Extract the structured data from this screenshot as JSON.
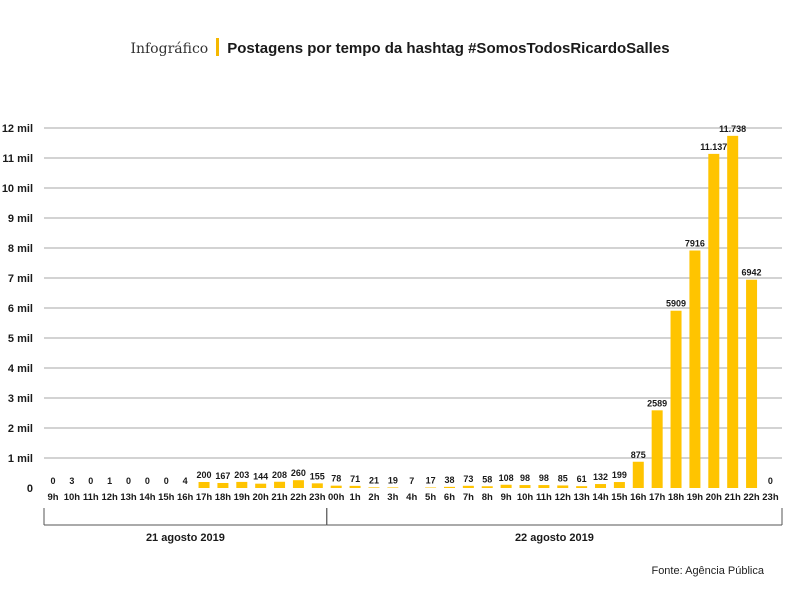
{
  "header": {
    "kicker": "Infográfico",
    "title": "Postagens por tempo da hashtag #SomosTodosRicardoSalles"
  },
  "source": "Fonte: Agência Pública",
  "colors": {
    "bar": "#FFC400",
    "grid": "#8a8a8a",
    "text": "#1a1a1a"
  },
  "chart_data": {
    "type": "bar",
    "title": "Postagens por tempo da hashtag #SomosTodosRicardoSalles",
    "ylim": [
      0,
      12000
    ],
    "grid": true,
    "y_ticks": [
      {
        "value": 0,
        "label": "0"
      },
      {
        "value": 1000,
        "label": "1 mil"
      },
      {
        "value": 2000,
        "label": "2 mil"
      },
      {
        "value": 3000,
        "label": "3 mil"
      },
      {
        "value": 4000,
        "label": "4 mil"
      },
      {
        "value": 5000,
        "label": "5 mil"
      },
      {
        "value": 6000,
        "label": "6 mil"
      },
      {
        "value": 7000,
        "label": "7 mil"
      },
      {
        "value": 8000,
        "label": "8 mil"
      },
      {
        "value": 9000,
        "label": "9 mil"
      },
      {
        "value": 10000,
        "label": "10 mil"
      },
      {
        "value": 11000,
        "label": "11 mil"
      },
      {
        "value": 12000,
        "label": "12 mil"
      }
    ],
    "categories": [
      "9h",
      "10h",
      "11h",
      "12h",
      "13h",
      "14h",
      "15h",
      "16h",
      "17h",
      "18h",
      "19h",
      "20h",
      "21h",
      "22h",
      "23h",
      "00h",
      "1h",
      "2h",
      "3h",
      "4h",
      "5h",
      "6h",
      "7h",
      "8h",
      "9h",
      "10h",
      "11h",
      "12h",
      "13h",
      "14h",
      "15h",
      "16h",
      "17h",
      "18h",
      "19h",
      "20h",
      "21h",
      "22h",
      "23h"
    ],
    "values": [
      0,
      3,
      0,
      1,
      0,
      0,
      0,
      4,
      200,
      167,
      203,
      144,
      208,
      260,
      155,
      78,
      71,
      21,
      19,
      7,
      17,
      38,
      73,
      58,
      108,
      98,
      98,
      85,
      61,
      132,
      199,
      875,
      2589,
      5909,
      7916,
      11137,
      11738,
      6942,
      0
    ],
    "value_labels": [
      "0",
      "3",
      "0",
      "1",
      "0",
      "0",
      "0",
      "4",
      "200",
      "167",
      "203",
      "144",
      "208",
      "260",
      "155",
      "78",
      "71",
      "21",
      "19",
      "7",
      "17",
      "38",
      "73",
      "58",
      "108",
      "98",
      "98",
      "85",
      "61",
      "132",
      "199",
      "875",
      "2589",
      "5909",
      "7916",
      "11.137",
      "11.738",
      "6942",
      "0"
    ],
    "groups": [
      {
        "label": "21 agosto 2019",
        "from": 0,
        "to": 14
      },
      {
        "label": "22 agosto 2019",
        "from": 15,
        "to": 38
      }
    ]
  }
}
